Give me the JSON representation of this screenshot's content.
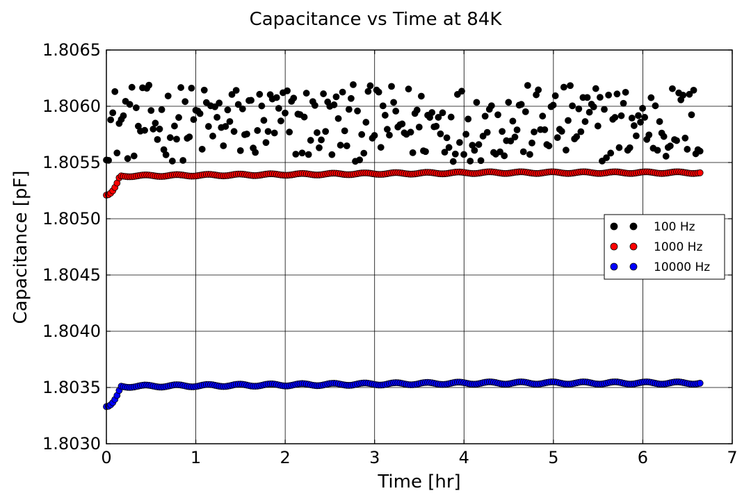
{
  "chart_data": {
    "type": "scatter",
    "title": "Capacitance vs Time at 84K",
    "xlabel": "Time [hr]",
    "ylabel": "Capacitance [pF]",
    "xlim": [
      0,
      7
    ],
    "ylim": [
      1.803,
      1.8065
    ],
    "x_ticks": [
      0,
      1,
      2,
      3,
      4,
      5,
      6,
      7
    ],
    "x_tick_labels": [
      "0",
      "1",
      "2",
      "3",
      "4",
      "5",
      "6",
      "7"
    ],
    "y_ticks": [
      1.803,
      1.8035,
      1.804,
      1.8045,
      1.805,
      1.8055,
      1.806,
      1.8065
    ],
    "y_tick_labels": [
      "1.8030",
      "1.8035",
      "1.8040",
      "1.8045",
      "1.8050",
      "1.8055",
      "1.8060",
      "1.8065"
    ],
    "grid": true,
    "legend_position": "right",
    "x_start": 0,
    "x_end": 6.64,
    "num_points": 280,
    "series": [
      {
        "name": "100 Hz",
        "color": "#000000",
        "marker": "circle",
        "baseline": 1.80585,
        "spread": 0.00038,
        "min": 1.80532,
        "max": 1.80642,
        "x_samples": [
          0.02,
          0.1,
          0.2,
          0.27,
          0.5,
          0.58,
          0.62,
          0.75,
          0.89,
          0.97,
          1.08,
          1.1,
          1.25,
          1.42,
          1.55,
          1.72,
          1.82,
          1.97,
          2.04,
          2.12,
          2.24,
          2.33,
          2.42,
          2.6,
          2.75,
          2.82,
          3.05,
          3.18,
          3.43,
          3.61,
          3.78,
          3.91,
          4.04,
          4.22,
          4.36,
          4.49,
          4.62,
          4.77,
          4.97,
          5.02,
          5.2,
          5.3,
          5.47,
          5.6,
          5.86,
          5.95,
          6.07,
          6.25,
          6.34,
          6.55,
          6.62
        ],
        "y_samples": [
          1.8058,
          1.80535,
          1.8059,
          1.8061,
          1.80642,
          1.8061,
          1.80575,
          1.8062,
          1.8056,
          1.8057,
          1.80622,
          1.806,
          1.8057,
          1.80622,
          1.806,
          1.8055,
          1.8057,
          1.8056,
          1.8061,
          1.8062,
          1.80635,
          1.80535,
          1.8057,
          1.8059,
          1.8058,
          1.80618,
          1.806,
          1.80605,
          1.80598,
          1.80565,
          1.8062,
          1.8059,
          1.8058,
          1.8064,
          1.80634,
          1.8057,
          1.8058,
          1.8056,
          1.80595,
          1.80532,
          1.80628,
          1.8055,
          1.80545,
          1.8058,
          1.8064,
          1.80545,
          1.8062,
          1.8055,
          1.8057,
          1.8061,
          1.80635
        ]
      },
      {
        "name": "1000 Hz",
        "color": "#ff0000",
        "marker": "circle",
        "start_value": 1.80521,
        "plateau_value": 1.80538,
        "late_value": 1.80541,
        "settle_time": 0.15,
        "ripple": 1.5e-05,
        "ripple_period": 0.35,
        "x_samples": [
          0.0,
          0.05,
          0.1,
          0.15,
          0.3,
          0.5,
          1.0,
          1.5,
          2.0,
          2.5,
          3.0,
          3.5,
          4.0,
          4.5,
          5.0,
          5.5,
          6.0,
          6.5,
          6.64
        ],
        "y_samples": [
          1.80521,
          1.80522,
          1.80527,
          1.80538,
          1.80535,
          1.80539,
          1.80538,
          1.8054,
          1.8054,
          1.80541,
          1.80542,
          1.80541,
          1.80541,
          1.8054,
          1.8054,
          1.80541,
          1.8054,
          1.80541,
          1.8054
        ]
      },
      {
        "name": "10000 Hz",
        "color": "#0000ff",
        "marker": "circle",
        "start_value": 1.80333,
        "plateau_value": 1.80351,
        "late_value": 1.80354,
        "settle_time": 0.16,
        "ripple": 2e-05,
        "ripple_period": 0.35,
        "x_samples": [
          0.0,
          0.05,
          0.1,
          0.15,
          0.3,
          0.5,
          0.9,
          1.0,
          1.5,
          2.0,
          2.3,
          2.65,
          3.0,
          3.35,
          3.7,
          4.05,
          4.4,
          4.75,
          5.1,
          5.45,
          5.8,
          6.15,
          6.5,
          6.64
        ],
        "y_samples": [
          1.80333,
          1.80335,
          1.80339,
          1.8035,
          1.80349,
          1.80354,
          1.80355,
          1.80351,
          1.80354,
          1.80355,
          1.80357,
          1.80356,
          1.80356,
          1.80357,
          1.80355,
          1.80355,
          1.80355,
          1.80355,
          1.80355,
          1.80355,
          1.80355,
          1.80355,
          1.80355,
          1.80354
        ]
      }
    ]
  }
}
